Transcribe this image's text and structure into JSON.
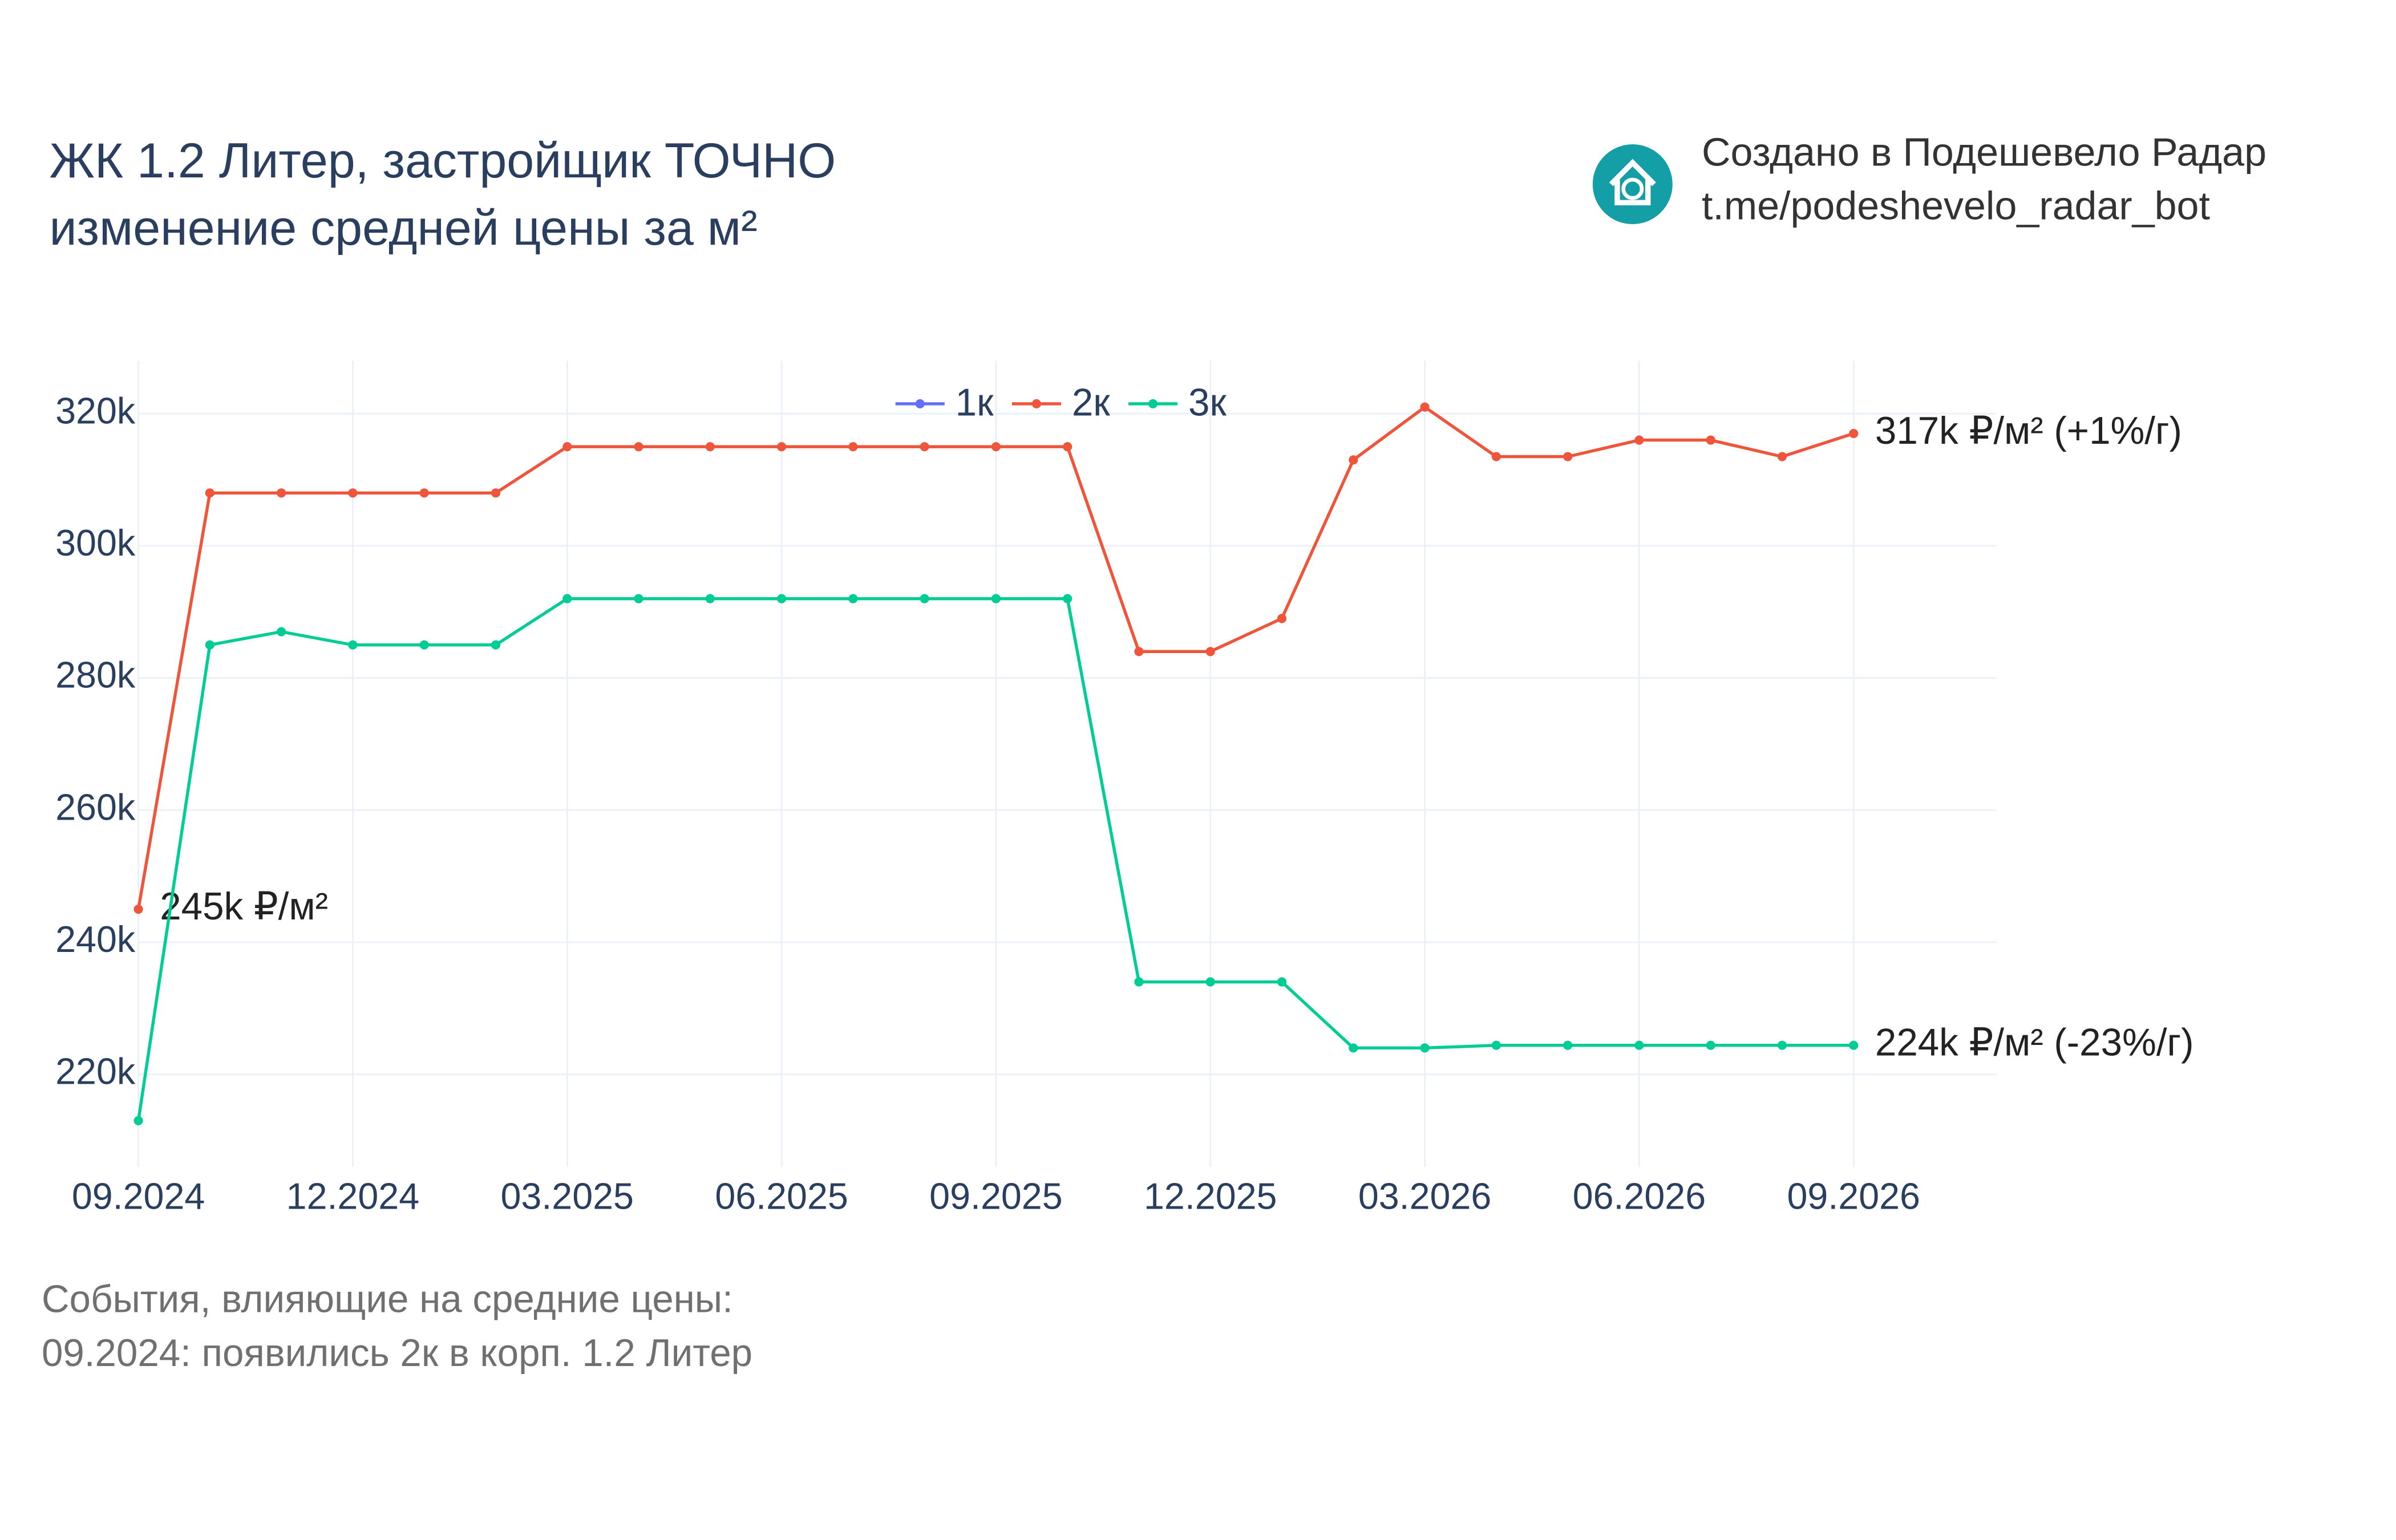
{
  "chart_data": {
    "type": "line",
    "title": [
      "ЖК 1.2 Литер, застройщик ТОЧНО",
      "изменение средней цены за м²"
    ],
    "credit": [
      "Создано в Подешевело Радар",
      "t.me/podeshevelo_radar_bot"
    ],
    "notes": [
      "События, влияющие на средние цены:",
      "09.2024: появились 2к в корп. 1.2 Литер"
    ],
    "x": [
      "2024-09",
      "2024-10",
      "2024-11",
      "2024-12",
      "2025-01",
      "2025-02",
      "2025-03",
      "2025-04",
      "2025-05",
      "2025-06",
      "2025-07",
      "2025-08",
      "2025-09",
      "2025-10",
      "2025-11",
      "2025-12",
      "2026-01",
      "2026-02",
      "2026-03",
      "2026-04",
      "2026-05",
      "2026-06",
      "2026-07",
      "2026-08",
      "2026-09"
    ],
    "series": [
      {
        "name": "1к",
        "color": "#636efa",
        "values": [
          null,
          null,
          null,
          null,
          null,
          null,
          null,
          null,
          null,
          null,
          null,
          null,
          null,
          null,
          null,
          null,
          null,
          null,
          null,
          null,
          null,
          null,
          null,
          null,
          null
        ]
      },
      {
        "name": "2к",
        "color": "#EF553B",
        "values": [
          245000,
          308000,
          308000,
          308000,
          308000,
          308000,
          315000,
          315000,
          315000,
          315000,
          315000,
          315000,
          315000,
          315000,
          284000,
          284000,
          289000,
          313000,
          321000,
          313500,
          313500,
          316000,
          316000,
          313500,
          317000
        ],
        "value_labels": [
          "245k ₽/м²",
          null,
          null,
          null,
          null,
          null,
          null,
          null,
          null,
          null,
          null,
          null,
          null,
          null,
          null,
          null,
          null,
          null,
          null,
          null,
          null,
          null,
          null,
          null,
          "317k ₽/м² (+1%/г)"
        ]
      },
      {
        "name": "3к",
        "color": "#00cc96",
        "values": [
          213000,
          285000,
          287000,
          285000,
          285000,
          285000,
          292000,
          292000,
          292000,
          292000,
          292000,
          292000,
          292000,
          292000,
          234000,
          234000,
          234000,
          224000,
          224000,
          224400,
          224400,
          224400,
          224400,
          224400,
          224400
        ],
        "value_labels": [
          null,
          null,
          null,
          null,
          null,
          null,
          null,
          null,
          null,
          null,
          null,
          null,
          null,
          null,
          null,
          null,
          null,
          null,
          null,
          null,
          null,
          null,
          null,
          null,
          "224k ₽/м² (-23%/г)"
        ]
      }
    ],
    "xlim": [
      "2024-09",
      "2026-11"
    ],
    "xticks": [
      {
        "value": "2024-09",
        "label": "09.2024"
      },
      {
        "value": "2024-12",
        "label": "12.2024"
      },
      {
        "value": "2025-03",
        "label": "03.2025"
      },
      {
        "value": "2025-06",
        "label": "06.2025"
      },
      {
        "value": "2025-09",
        "label": "09.2025"
      },
      {
        "value": "2025-12",
        "label": "12.2025"
      },
      {
        "value": "2026-03",
        "label": "03.2026"
      },
      {
        "value": "2026-06",
        "label": "06.2026"
      },
      {
        "value": "2026-09",
        "label": "09.2026"
      }
    ],
    "ylim": [
      206000,
      328000
    ],
    "yticks": [
      {
        "value": 220000,
        "label": "220k"
      },
      {
        "value": 240000,
        "label": "240k"
      },
      {
        "value": 260000,
        "label": "260k"
      },
      {
        "value": 280000,
        "label": "280k"
      },
      {
        "value": 300000,
        "label": "300k"
      },
      {
        "value": 320000,
        "label": "320k"
      }
    ],
    "grid": true,
    "legend": "top"
  }
}
